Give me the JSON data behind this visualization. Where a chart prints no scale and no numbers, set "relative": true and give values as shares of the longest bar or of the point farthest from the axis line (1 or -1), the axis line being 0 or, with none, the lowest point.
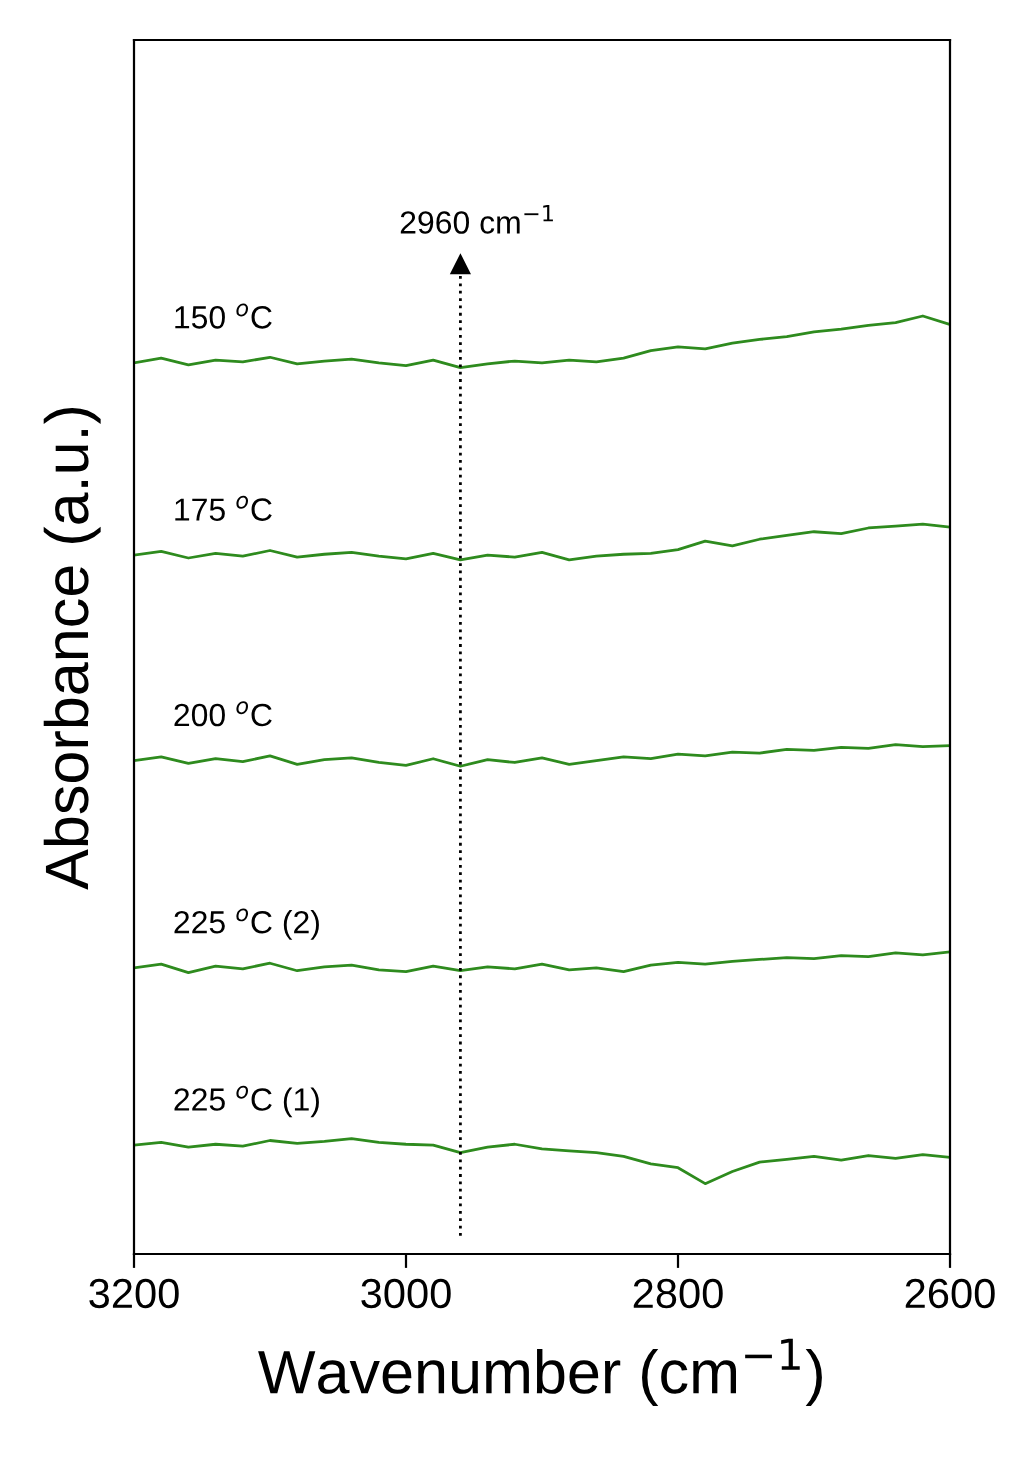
{
  "chart_data": {
    "type": "line",
    "relative": true,
    "xlabel": "Wavenumber (cm$^{−1}$)",
    "ylabel": "Absorbance (a.u.)",
    "xlim": [
      3200,
      2600
    ],
    "xticks": [
      3200,
      3000,
      2800,
      2600
    ],
    "legend": false,
    "grid": false,
    "marker": "none",
    "line_style": "solid",
    "x": [
      3200,
      3180,
      3160,
      3140,
      3120,
      3100,
      3080,
      3060,
      3040,
      3020,
      3000,
      2980,
      2960,
      2940,
      2920,
      2900,
      2880,
      2860,
      2840,
      2820,
      2800,
      2780,
      2760,
      2740,
      2720,
      2700,
      2680,
      2660,
      2640,
      2620,
      2600
    ],
    "series": [
      {
        "name": "150 $^{o}$C",
        "color": "#2e8b1e",
        "values": [
          0.95,
          0.955,
          0.948,
          0.953,
          0.951,
          0.956,
          0.949,
          0.952,
          0.954,
          0.95,
          0.947,
          0.953,
          0.945,
          0.949,
          0.952,
          0.95,
          0.953,
          0.951,
          0.955,
          0.963,
          0.967,
          0.965,
          0.971,
          0.975,
          0.978,
          0.983,
          0.986,
          0.99,
          0.993,
          1.0,
          0.991
        ]
      },
      {
        "name": "175 $^{o}$C",
        "color": "#2e8b1e",
        "values": [
          0.745,
          0.749,
          0.742,
          0.747,
          0.744,
          0.75,
          0.743,
          0.746,
          0.748,
          0.744,
          0.741,
          0.747,
          0.74,
          0.745,
          0.743,
          0.748,
          0.74,
          0.744,
          0.746,
          0.747,
          0.751,
          0.76,
          0.755,
          0.762,
          0.766,
          0.77,
          0.768,
          0.774,
          0.776,
          0.778,
          0.775
        ]
      },
      {
        "name": "200 $^{o}$C",
        "color": "#2e8b1e",
        "values": [
          0.526,
          0.53,
          0.523,
          0.528,
          0.525,
          0.531,
          0.522,
          0.527,
          0.529,
          0.524,
          0.521,
          0.528,
          0.52,
          0.527,
          0.524,
          0.529,
          0.522,
          0.526,
          0.53,
          0.528,
          0.533,
          0.531,
          0.535,
          0.534,
          0.538,
          0.537,
          0.54,
          0.539,
          0.543,
          0.541,
          0.542
        ]
      },
      {
        "name": "225 $^{o}$C (2)",
        "color": "#2e8b1e",
        "values": [
          0.305,
          0.309,
          0.3,
          0.307,
          0.304,
          0.31,
          0.302,
          0.306,
          0.308,
          0.303,
          0.301,
          0.307,
          0.302,
          0.306,
          0.304,
          0.309,
          0.303,
          0.305,
          0.301,
          0.308,
          0.311,
          0.309,
          0.312,
          0.314,
          0.316,
          0.315,
          0.318,
          0.317,
          0.321,
          0.319,
          0.322
        ]
      },
      {
        "name": "225 $^{o}$C (1)",
        "color": "#2e8b1e",
        "values": [
          0.116,
          0.119,
          0.114,
          0.117,
          0.115,
          0.121,
          0.118,
          0.12,
          0.123,
          0.119,
          0.117,
          0.116,
          0.108,
          0.114,
          0.117,
          0.112,
          0.11,
          0.108,
          0.104,
          0.096,
          0.092,
          0.075,
          0.088,
          0.098,
          0.101,
          0.104,
          0.1,
          0.105,
          0.102,
          0.106,
          0.103
        ]
      }
    ],
    "ref_lines": [
      {
        "axis": "x",
        "value": 2960,
        "label": "2960 cm$^{−1}$",
        "line_style": "dotted",
        "color": "#000000"
      }
    ]
  }
}
